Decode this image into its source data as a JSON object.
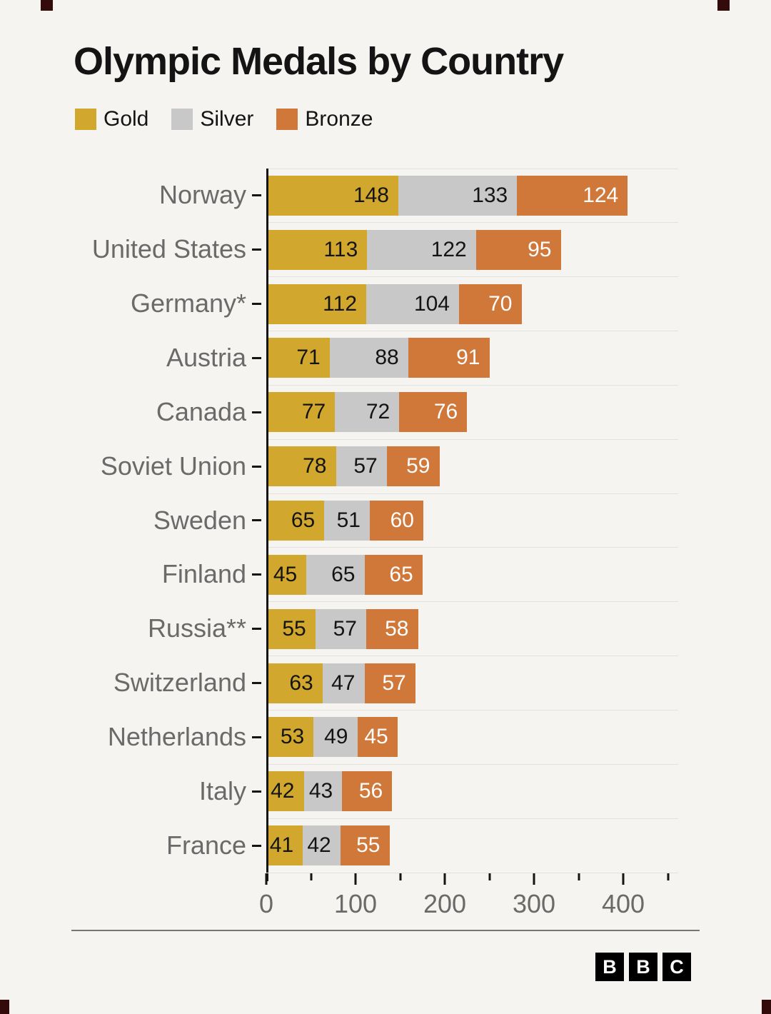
{
  "title": "Olympic Medals by Country",
  "legend": [
    {
      "label": "Gold",
      "color": "#d1a72d"
    },
    {
      "label": "Silver",
      "color": "#c8c8c8"
    },
    {
      "label": "Bronze",
      "color": "#d0783a"
    }
  ],
  "chart_data": {
    "type": "bar",
    "orientation": "horizontal",
    "stacked": true,
    "title": "Olympic Medals by Country",
    "categories": [
      "Norway",
      "United States",
      "Germany*",
      "Austria",
      "Canada",
      "Soviet Union",
      "Sweden",
      "Finland",
      "Russia**",
      "Switzerland",
      "Netherlands",
      "Italy",
      "France"
    ],
    "series": [
      {
        "name": "Gold",
        "color": "#d1a72d",
        "text_color": "#141414",
        "values": [
          148,
          113,
          112,
          71,
          77,
          78,
          65,
          45,
          55,
          63,
          53,
          42,
          41
        ]
      },
      {
        "name": "Silver",
        "color": "#c8c8c8",
        "text_color": "#141414",
        "values": [
          133,
          122,
          104,
          88,
          72,
          57,
          51,
          65,
          57,
          47,
          49,
          43,
          42
        ]
      },
      {
        "name": "Bronze",
        "color": "#d0783a",
        "text_color": "#ffffff",
        "values": [
          124,
          95,
          70,
          91,
          76,
          59,
          60,
          65,
          58,
          57,
          45,
          56,
          55
        ]
      }
    ],
    "xlim": [
      0,
      460
    ],
    "x_major_ticks": [
      0,
      100,
      200,
      300,
      400
    ],
    "x_minor_ticks": [
      50,
      150,
      250,
      350,
      450
    ],
    "grid": "horizontal-category-boundaries",
    "legend_position": "top-left"
  },
  "footer": {
    "logo_letters": [
      "B",
      "B",
      "C"
    ]
  }
}
